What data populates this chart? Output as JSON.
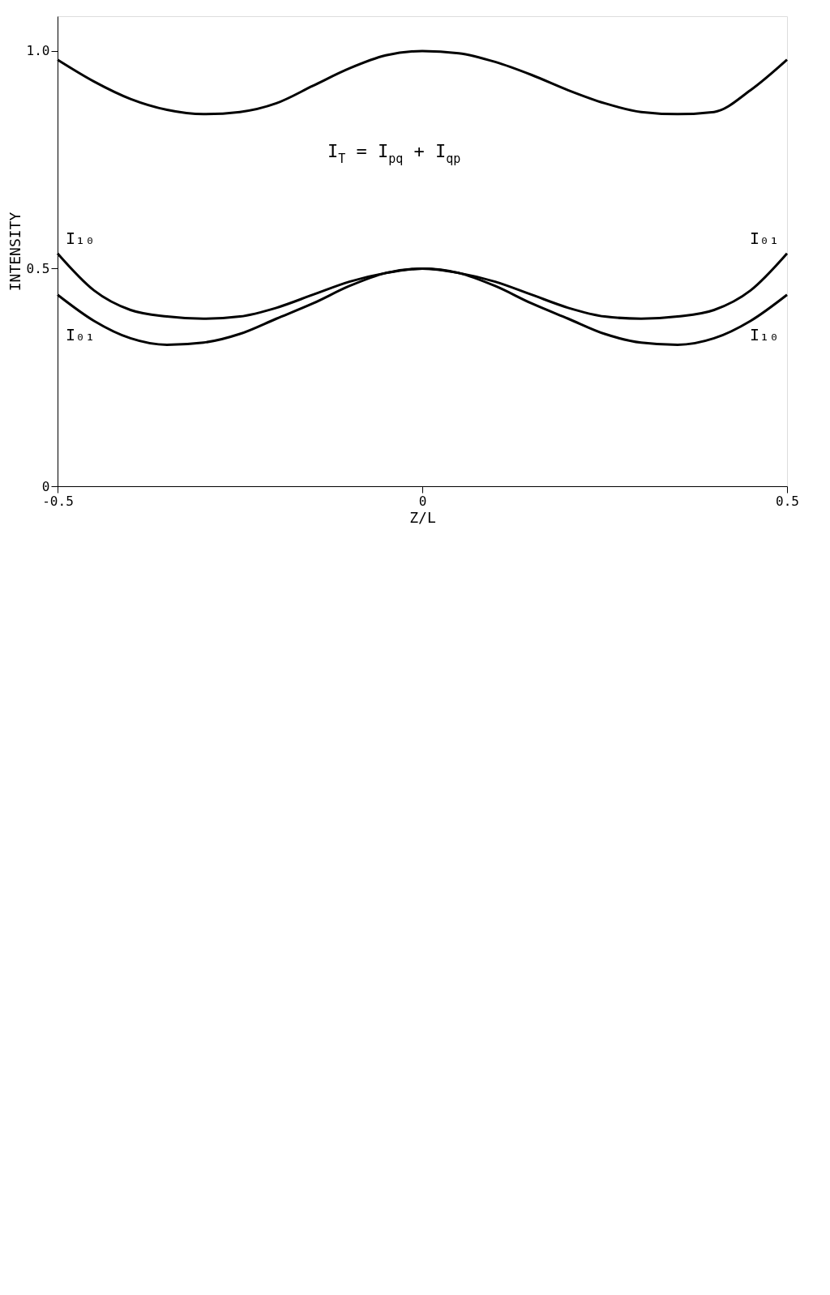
{
  "chart_data": {
    "type": "line",
    "xlabel": "Z/L",
    "ylabel": "INTENSITY",
    "x": [
      -0.5,
      -0.45,
      -0.4,
      -0.35,
      -0.3,
      -0.25,
      -0.2,
      -0.15,
      -0.1,
      -0.05,
      0,
      0.05,
      0.1,
      0.15,
      0.2,
      0.25,
      0.3,
      0.35,
      0.4,
      0.45,
      0.5
    ],
    "series": [
      {
        "color": "#000000",
        "values": [
          0.98,
          0.93,
          0.89,
          0.865,
          0.855,
          0.86,
          0.88,
          0.92,
          0.96,
          0.99,
          1.0,
          0.995,
          0.975,
          0.945,
          0.91,
          0.88,
          0.86,
          0.855,
          0.86,
          0.91,
          0.98
        ]
      },
      {
        "name": "I₁₀",
        "color": "#000000",
        "values": [
          0.535,
          0.45,
          0.405,
          0.39,
          0.385,
          0.39,
          0.41,
          0.44,
          0.47,
          0.49,
          0.5,
          0.49,
          0.46,
          0.42,
          0.385,
          0.35,
          0.33,
          0.325,
          0.34,
          0.38,
          0.44
        ]
      },
      {
        "name": "I₀₁",
        "color": "#000000",
        "values": [
          0.44,
          0.38,
          0.34,
          0.325,
          0.33,
          0.35,
          0.385,
          0.42,
          0.46,
          0.49,
          0.5,
          0.49,
          0.47,
          0.44,
          0.41,
          0.39,
          0.385,
          0.39,
          0.405,
          0.45,
          0.535
        ]
      }
    ],
    "annotations": [
      "I$_{T}$ = I$_{pq}$ + I$_{qp}$"
    ],
    "xlim": [
      -0.5,
      0.5
    ],
    "xticks": [
      -0.5,
      0,
      0.5
    ],
    "ylim": [
      0,
      1.08
    ],
    "yticks": [
      0,
      0.5,
      {
        "value": 1,
        "label": "1.0"
      }
    ],
    "grid": false,
    "marker": "none",
    "line_style": "solid"
  }
}
